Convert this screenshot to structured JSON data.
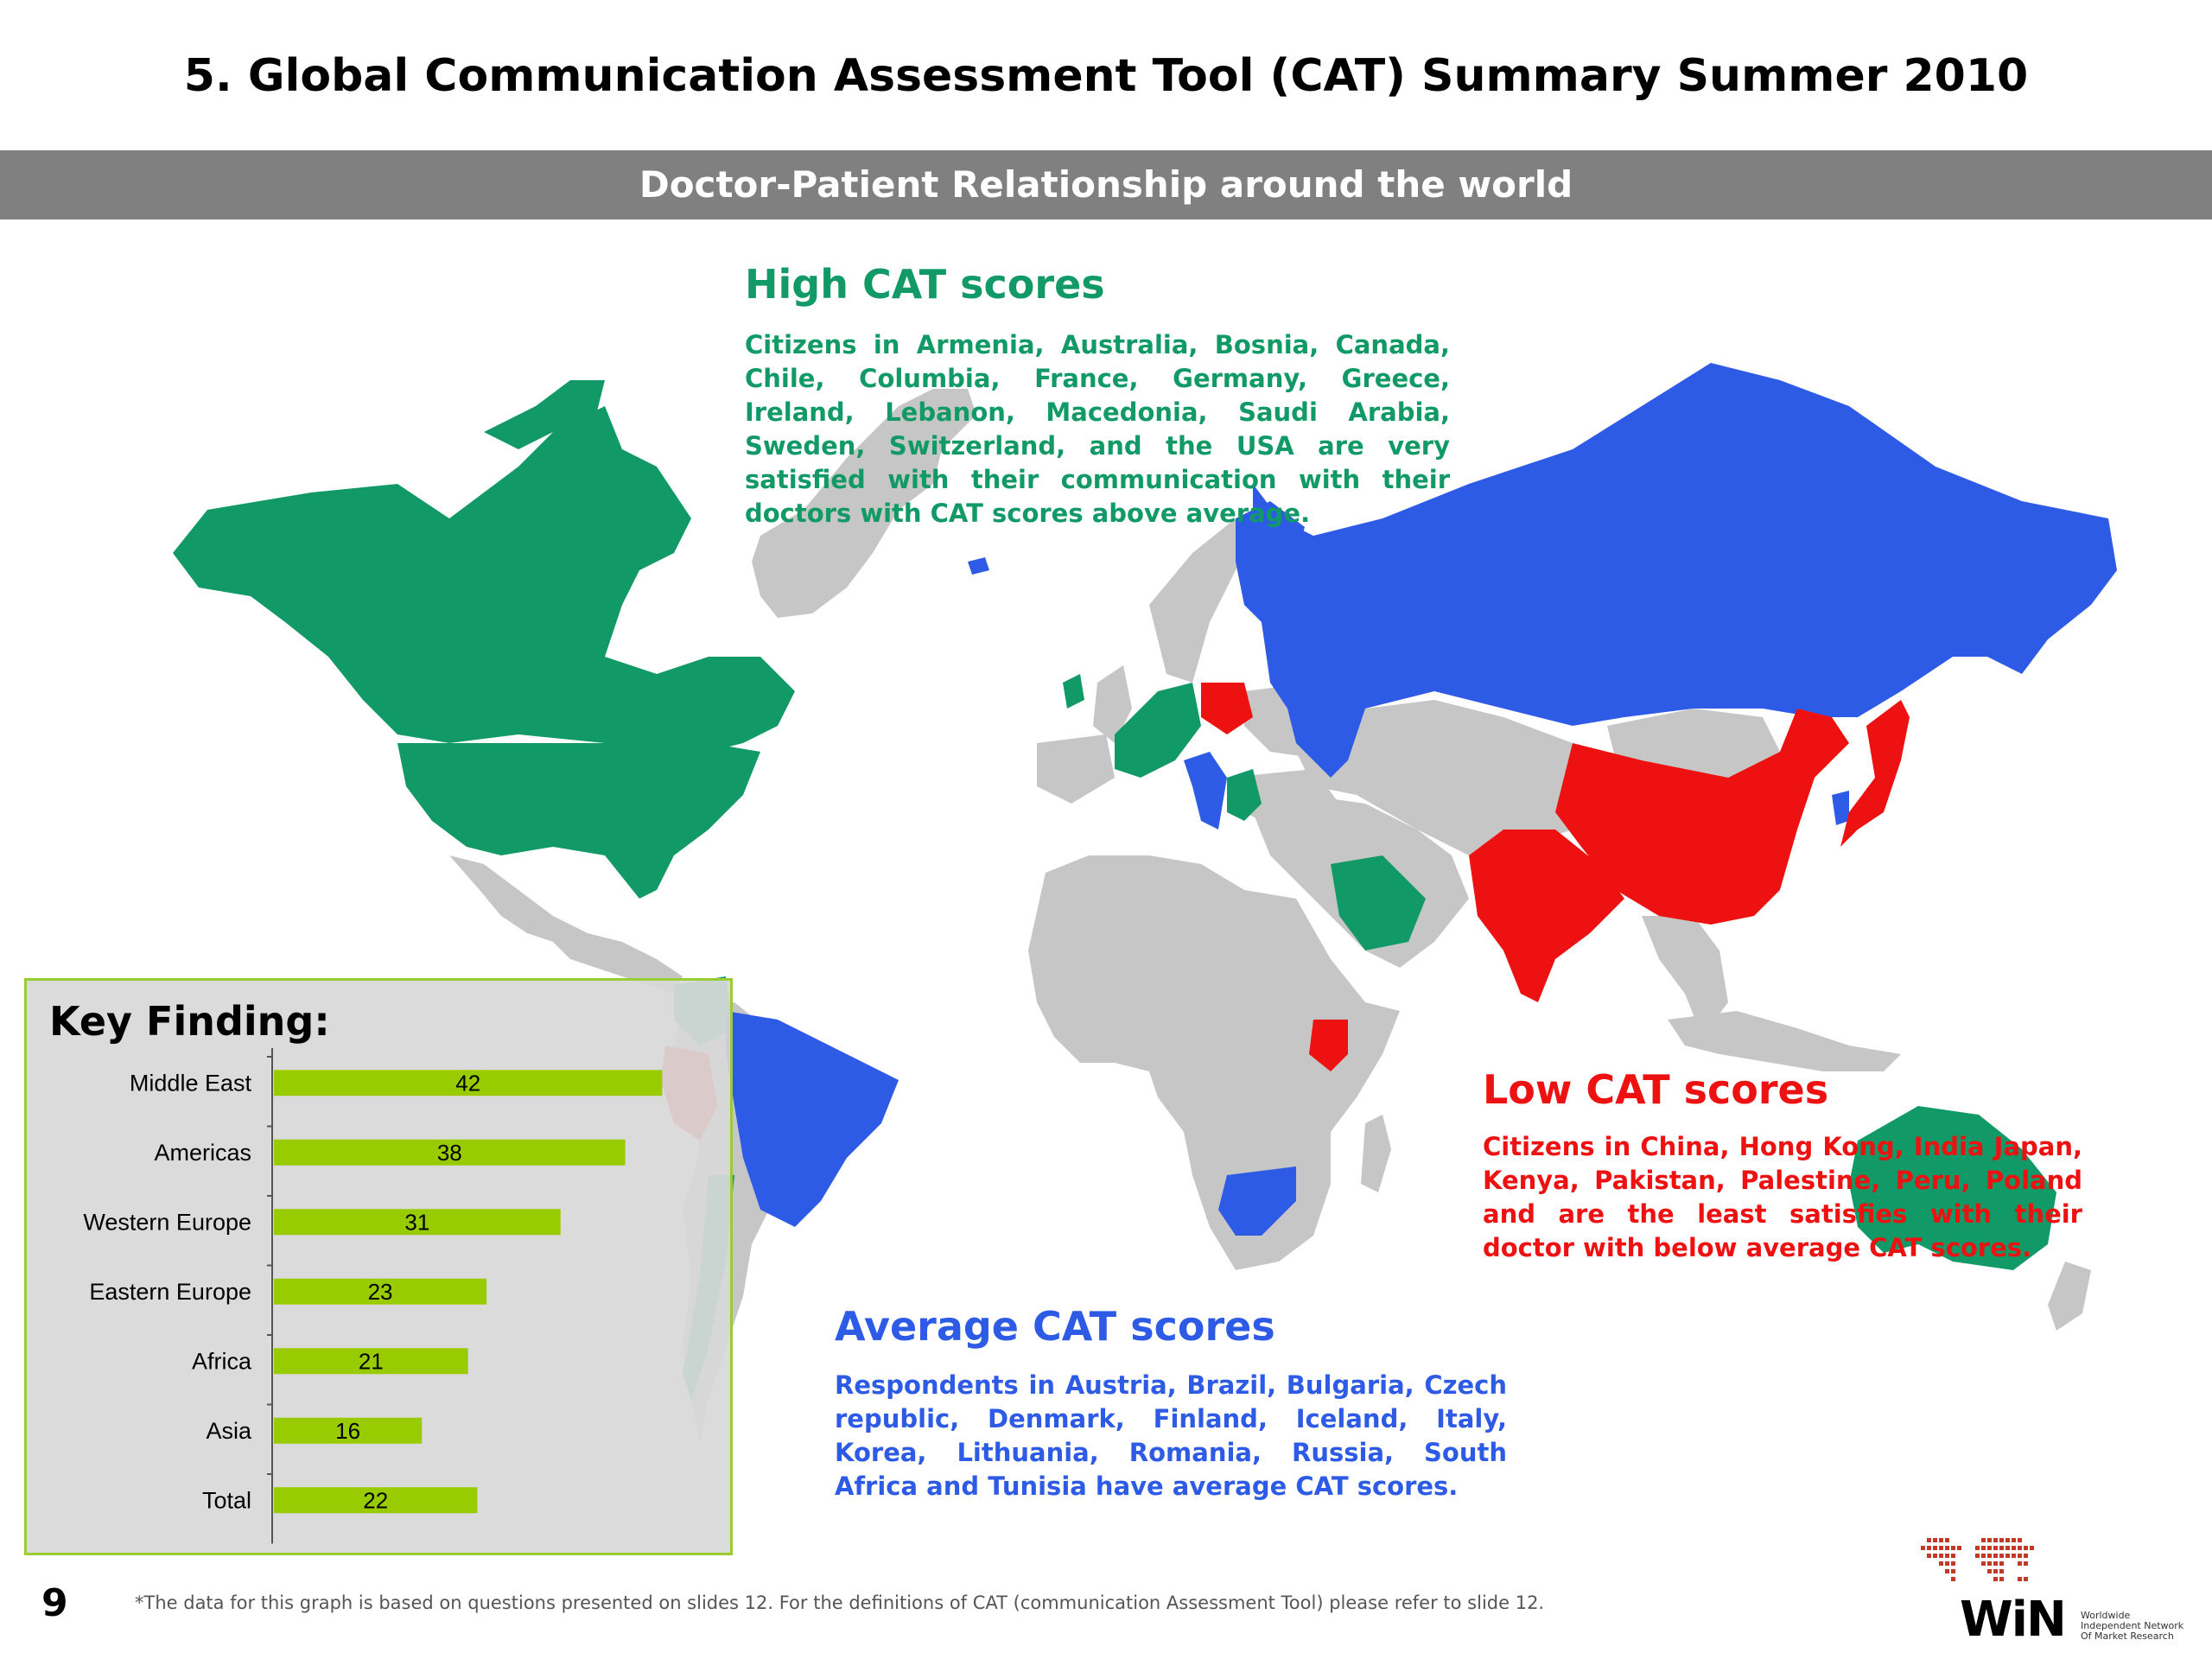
{
  "page": {
    "title": "5. Global Communication Assessment Tool (CAT) Summary Summer 2010",
    "subtitle": "Doctor-Patient  Relationship around the world",
    "page_number": "9",
    "footnote": "*The data for this graph is based on questions presented on slides 12. For the definitions of CAT (communication Assessment Tool) please refer to slide 12."
  },
  "colors": {
    "high": "#119a67",
    "average": "#2e5be6",
    "low": "#ee1111",
    "no_data": "#c6c6c6",
    "bar": "#99cc00",
    "band": "#808080"
  },
  "legend": {
    "high": {
      "heading": "High CAT scores",
      "text": "Citizens in Armenia, Australia, Bosnia, Canada, Chile, Columbia, France, Germany, Greece, Ireland, Lebanon, Macedonia, Saudi Arabia, Sweden, Switzerland, and the USA are very satisfied with their communication with their doctors with CAT scores above average."
    },
    "average": {
      "heading": "Average CAT scores",
      "text": "Respondents in Austria, Brazil, Bulgaria, Czech republic, Denmark, Finland, Iceland, Italy, Korea, Lithuania, Romania, Russia, South Africa and Tunisia have average CAT scores."
    },
    "low": {
      "heading": "Low CAT scores",
      "text": "Citizens in China, Hong Kong, India Japan, Kenya, Pakistan, Palestine, Peru, Poland and are the least satisfies with their doctor with below average CAT scores."
    }
  },
  "key_finding": {
    "title": "Key Finding:"
  },
  "chart_data": {
    "type": "bar",
    "orientation": "horizontal",
    "categories": [
      "Middle East",
      "Americas",
      "Western Europe",
      "Eastern Europe",
      "Africa",
      "Asia",
      "Total"
    ],
    "values": [
      42,
      38,
      31,
      23,
      21,
      16,
      22
    ],
    "xlim": [
      0,
      50
    ],
    "grid": false
  },
  "logo": {
    "word": "WiN",
    "tagline": "Worldwide\nIndependent Network\nOf Market Research"
  }
}
